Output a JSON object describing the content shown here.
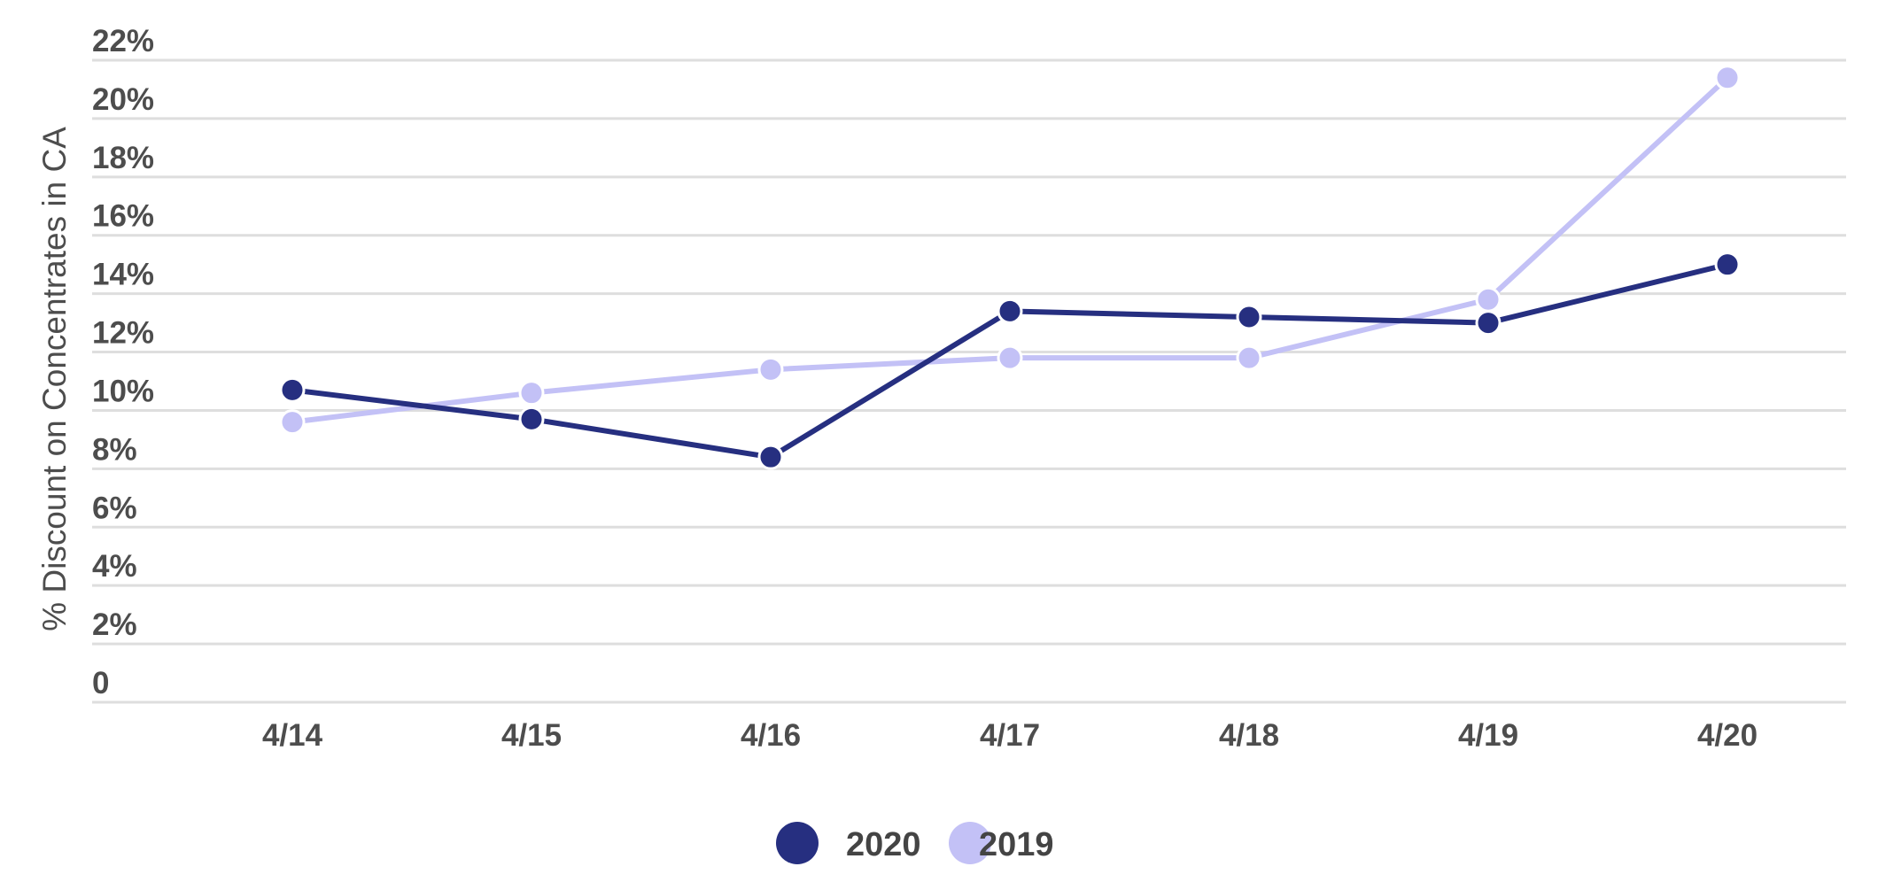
{
  "chart_data": {
    "type": "line",
    "title": "",
    "xlabel": "",
    "ylabel": "% Discount on Concentrates in CA",
    "categories": [
      "4/14",
      "4/15",
      "4/16",
      "4/17",
      "4/18",
      "4/19",
      "4/20"
    ],
    "y_ticks": [
      "0",
      "2%",
      "4%",
      "6%",
      "8%",
      "10%",
      "12%",
      "14%",
      "16%",
      "18%",
      "20%",
      "22%"
    ],
    "ylim": [
      0,
      22
    ],
    "grid": true,
    "legend_position": "bottom-center",
    "series": [
      {
        "name": "2020",
        "color": "#262f80",
        "values": [
          10.7,
          9.7,
          8.4,
          13.4,
          13.2,
          13.0,
          15.0
        ]
      },
      {
        "name": "2019",
        "color": "#c3c1f6",
        "values": [
          9.6,
          10.6,
          11.4,
          11.8,
          11.8,
          13.8,
          21.4
        ]
      }
    ]
  }
}
